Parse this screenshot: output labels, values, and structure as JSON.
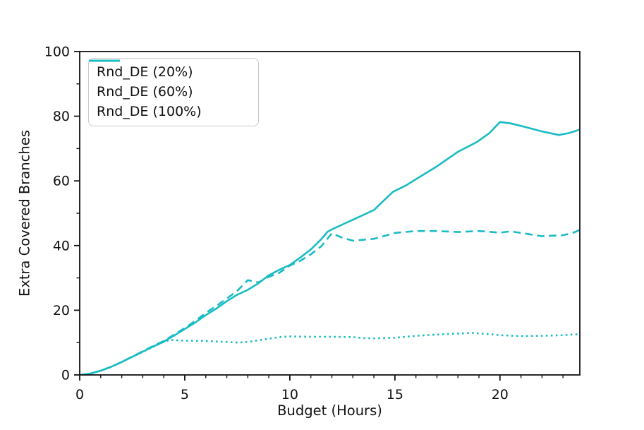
{
  "chart_data": {
    "type": "line",
    "title": "",
    "xlabel": "Budget (Hours)",
    "ylabel": "Extra Covered Branches",
    "xlim": [
      0,
      23.8
    ],
    "ylim": [
      0,
      100
    ],
    "xticks": [
      0,
      5,
      10,
      15,
      20
    ],
    "yticks": [
      0,
      20,
      40,
      60,
      80,
      100
    ],
    "x_minor_step": 1,
    "y_minor_step": 10,
    "grid": false,
    "legend_position": "upper-left",
    "line_color": "#1abcc4",
    "series": [
      {
        "name": "Rnd_DE (20%)",
        "style": "dotted",
        "points": [
          [
            0,
            0
          ],
          [
            0.5,
            0.4
          ],
          [
            1,
            1.3
          ],
          [
            1.5,
            2.5
          ],
          [
            2,
            4
          ],
          [
            2.5,
            5.6
          ],
          [
            3,
            7.1
          ],
          [
            3.5,
            8.7
          ],
          [
            4,
            10.2
          ],
          [
            4.3,
            10.8
          ],
          [
            5,
            10.6
          ],
          [
            6,
            10.5
          ],
          [
            7,
            10.2
          ],
          [
            7.5,
            10
          ],
          [
            8,
            10.2
          ],
          [
            9,
            11.2
          ],
          [
            9.5,
            11.7
          ],
          [
            10,
            11.9
          ],
          [
            11,
            11.8
          ],
          [
            12,
            11.8
          ],
          [
            13,
            11.7
          ],
          [
            13.5,
            11.4
          ],
          [
            14,
            11.3
          ],
          [
            15,
            11.5
          ],
          [
            16,
            12.1
          ],
          [
            17,
            12.5
          ],
          [
            18,
            12.8
          ],
          [
            18.7,
            13
          ],
          [
            19.5,
            12.6
          ],
          [
            20,
            12.3
          ],
          [
            21,
            12
          ],
          [
            22,
            12.1
          ],
          [
            23,
            12.3
          ],
          [
            24,
            12.7
          ]
        ]
      },
      {
        "name": "Rnd_DE (60%)",
        "style": "dashed",
        "points": [
          [
            0,
            0
          ],
          [
            0.5,
            0.4
          ],
          [
            1,
            1.3
          ],
          [
            1.5,
            2.5
          ],
          [
            2,
            4
          ],
          [
            2.5,
            5.7
          ],
          [
            3,
            7.3
          ],
          [
            3.5,
            9
          ],
          [
            4,
            10.5
          ],
          [
            4.5,
            12.5
          ],
          [
            5,
            14.5
          ],
          [
            5.5,
            16.7
          ],
          [
            6,
            19.2
          ],
          [
            6.5,
            21.3
          ],
          [
            7,
            23.6
          ],
          [
            7.5,
            26
          ],
          [
            8,
            29.3
          ],
          [
            8.5,
            28.6
          ],
          [
            9,
            30.3
          ],
          [
            9.5,
            31.6
          ],
          [
            10,
            33.8
          ],
          [
            10.5,
            35.3
          ],
          [
            11,
            37.3
          ],
          [
            11.5,
            39.8
          ],
          [
            12,
            43.8
          ],
          [
            12.5,
            42.4
          ],
          [
            13,
            41.5
          ],
          [
            13.5,
            41.8
          ],
          [
            14,
            42.1
          ],
          [
            14.5,
            43
          ],
          [
            15,
            43.9
          ],
          [
            16,
            44.5
          ],
          [
            17,
            44.5
          ],
          [
            18,
            44.2
          ],
          [
            19,
            44.5
          ],
          [
            20,
            44
          ],
          [
            20.5,
            44.4
          ],
          [
            21,
            43.9
          ],
          [
            22,
            42.9
          ],
          [
            23,
            43.2
          ],
          [
            23.5,
            44
          ],
          [
            24,
            45.4
          ]
        ]
      },
      {
        "name": "Rnd_DE (100%)",
        "style": "solid",
        "points": [
          [
            0,
            0
          ],
          [
            0.5,
            0.4
          ],
          [
            1,
            1.3
          ],
          [
            1.5,
            2.5
          ],
          [
            2,
            4
          ],
          [
            2.5,
            5.6
          ],
          [
            3,
            7.2
          ],
          [
            3.5,
            8.8
          ],
          [
            4,
            10.3
          ],
          [
            4.5,
            12.2
          ],
          [
            5,
            14.2
          ],
          [
            5.5,
            16.2
          ],
          [
            6,
            18.5
          ],
          [
            6.5,
            20.5
          ],
          [
            7,
            22.8
          ],
          [
            7.5,
            24.8
          ],
          [
            8,
            26.3
          ],
          [
            8.5,
            28.3
          ],
          [
            9,
            30.8
          ],
          [
            9.5,
            32.5
          ],
          [
            10,
            34
          ],
          [
            10.5,
            36.3
          ],
          [
            11,
            38.8
          ],
          [
            11.5,
            42
          ],
          [
            11.8,
            44.3
          ],
          [
            12,
            45
          ],
          [
            12.5,
            46.5
          ],
          [
            13,
            48
          ],
          [
            14,
            51
          ],
          [
            14.9,
            56.6
          ],
          [
            15.5,
            58.5
          ],
          [
            16,
            60.5
          ],
          [
            17,
            64.5
          ],
          [
            18,
            69
          ],
          [
            18.9,
            72
          ],
          [
            19.5,
            74.8
          ],
          [
            20,
            78.2
          ],
          [
            20.5,
            77.8
          ],
          [
            21,
            77
          ],
          [
            22,
            75.3
          ],
          [
            22.8,
            74.2
          ],
          [
            23.3,
            74.8
          ],
          [
            24,
            76.3
          ]
        ]
      }
    ]
  }
}
